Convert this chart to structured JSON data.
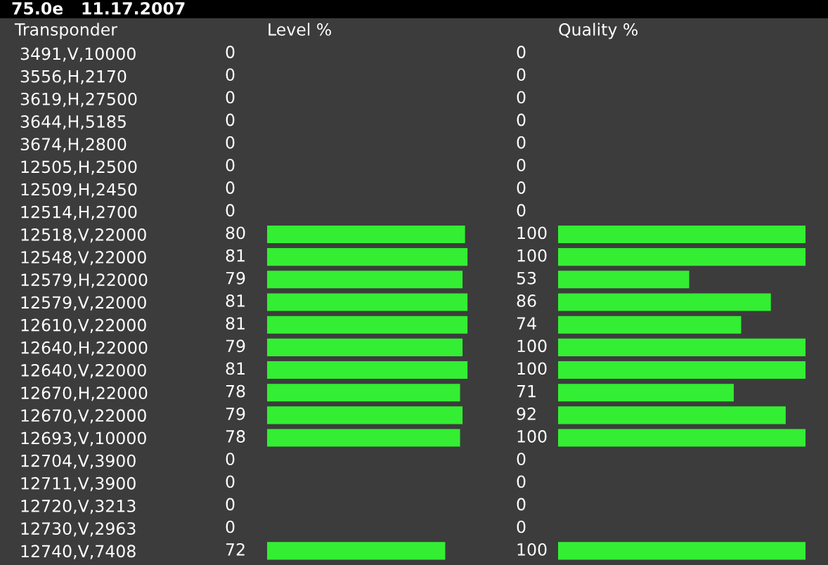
{
  "chart_data": [
    {
      "type": "bar",
      "orientation": "horizontal",
      "title": "Level %",
      "ylabel": "Transponder",
      "subtitle": "75.0e   11.17.2007",
      "categories": [
        "3491,V,10000",
        "3556,H,2170",
        "3619,H,27500",
        "3644,H,5185",
        "3674,H,2800",
        "12505,H,2500",
        "12509,H,2450",
        "12514,H,2700",
        "12518,V,22000",
        "12548,V,22000",
        "12579,H,22000",
        "12579,V,22000",
        "12610,V,22000",
        "12640,H,22000",
        "12640,V,22000",
        "12670,H,22000",
        "12670,V,22000",
        "12693,V,10000",
        "12704,V,3900",
        "12711,V,3900",
        "12720,V,3213",
        "12730,V,2963",
        "12740,V,7408"
      ],
      "values": [
        0,
        0,
        0,
        0,
        0,
        0,
        0,
        0,
        80,
        81,
        79,
        81,
        81,
        79,
        81,
        78,
        79,
        78,
        0,
        0,
        0,
        0,
        72
      ],
      "color": "#33ee33",
      "data_labels": true,
      "tick_labels": "y",
      "grid": false,
      "legend": false
    },
    {
      "type": "bar",
      "orientation": "horizontal",
      "title": "Quality %",
      "categories": [
        null,
        null,
        null,
        null,
        null,
        null,
        null,
        null,
        null,
        null,
        null,
        null,
        null,
        null,
        null,
        null,
        null,
        null,
        null,
        null,
        null,
        null,
        null
      ],
      "values": [
        0,
        0,
        0,
        0,
        0,
        0,
        0,
        0,
        100,
        100,
        53,
        86,
        74,
        100,
        100,
        71,
        92,
        100,
        0,
        0,
        0,
        0,
        100
      ],
      "color": "#33ee33",
      "data_labels": true,
      "tick_labels": false,
      "grid": false,
      "legend": false
    }
  ]
}
